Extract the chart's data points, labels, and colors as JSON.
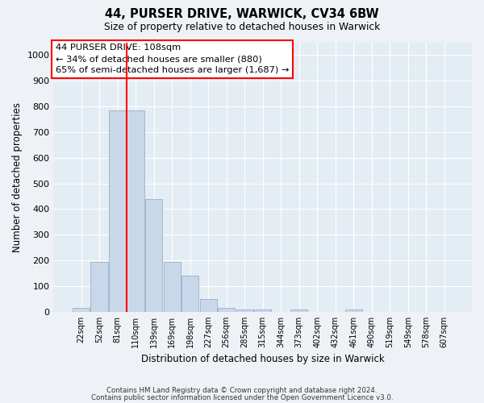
{
  "title1": "44, PURSER DRIVE, WARWICK, CV34 6BW",
  "title2": "Size of property relative to detached houses in Warwick",
  "xlabel": "Distribution of detached houses by size in Warwick",
  "ylabel": "Number of detached properties",
  "categories": [
    "22sqm",
    "52sqm",
    "81sqm",
    "110sqm",
    "139sqm",
    "169sqm",
    "198sqm",
    "227sqm",
    "256sqm",
    "285sqm",
    "315sqm",
    "344sqm",
    "373sqm",
    "402sqm",
    "432sqm",
    "461sqm",
    "490sqm",
    "519sqm",
    "549sqm",
    "578sqm",
    "607sqm"
  ],
  "values": [
    15,
    195,
    785,
    785,
    440,
    195,
    140,
    50,
    15,
    10,
    10,
    0,
    10,
    0,
    0,
    10,
    0,
    0,
    0,
    0,
    0
  ],
  "bar_color": "#c8d8ea",
  "bar_edge_color": "#a0b8cc",
  "redline_index": 2.5,
  "annotation_line1": "44 PURSER DRIVE: 108sqm",
  "annotation_line2": "← 34% of detached houses are smaller (880)",
  "annotation_line3": "65% of semi-detached houses are larger (1,687) →",
  "ylim": [
    0,
    1050
  ],
  "yticks": [
    0,
    100,
    200,
    300,
    400,
    500,
    600,
    700,
    800,
    900,
    1000
  ],
  "bg_color": "#eef2f7",
  "plot_bg_color": "#e4ecf4",
  "footer1": "Contains HM Land Registry data © Crown copyright and database right 2024.",
  "footer2": "Contains public sector information licensed under the Open Government Licence v3.0."
}
